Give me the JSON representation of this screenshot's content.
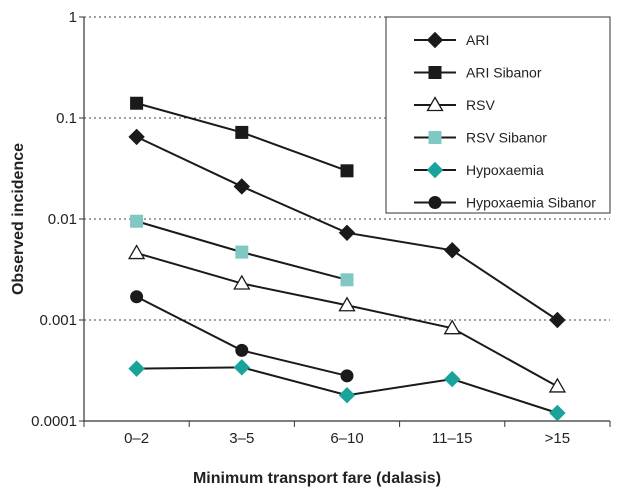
{
  "chart_data": {
    "type": "line",
    "scale": "log",
    "categories": [
      "0–2",
      "3–5",
      "6–10",
      "11–15",
      ">15"
    ],
    "y_ticks": [
      1,
      0.1,
      0.01,
      0.001,
      0.0001
    ],
    "y_tick_labels": [
      "1",
      "0.1",
      "0.01",
      "0.001",
      "0.0001"
    ],
    "ylim": [
      0.0001,
      1
    ],
    "xlabel": "Minimum transport fare (dalasis)",
    "ylabel": "Observed incidence",
    "grid": "dotted horizontal at each decade",
    "legend_position": "top-right",
    "series": [
      {
        "name": "ARI",
        "marker": "diamond",
        "color": "#1a1a1a",
        "values": [
          0.065,
          0.021,
          0.0073,
          0.0049,
          0.001
        ]
      },
      {
        "name": "ARI Sibanor",
        "marker": "square",
        "color": "#1a1a1a",
        "values": [
          0.14,
          0.072,
          0.03,
          null,
          null
        ]
      },
      {
        "name": "RSV",
        "marker": "triangle-open",
        "color": "#1a1a1a",
        "values": [
          0.0046,
          0.0023,
          0.0014,
          0.00083,
          0.00022
        ]
      },
      {
        "name": "RSV Sibanor",
        "marker": "square",
        "color": "#7fc8c4",
        "values": [
          0.0095,
          0.0047,
          0.0025,
          null,
          null
        ]
      },
      {
        "name": "Hypoxaemia",
        "marker": "diamond",
        "color": "#1aa39a",
        "values": [
          0.00033,
          0.00034,
          0.00018,
          0.00026,
          0.00012
        ]
      },
      {
        "name": "Hypoxaemia Sibanor",
        "marker": "circle",
        "color": "#1a1a1a",
        "values": [
          0.0017,
          0.0005,
          0.00028,
          null,
          null
        ]
      }
    ]
  }
}
